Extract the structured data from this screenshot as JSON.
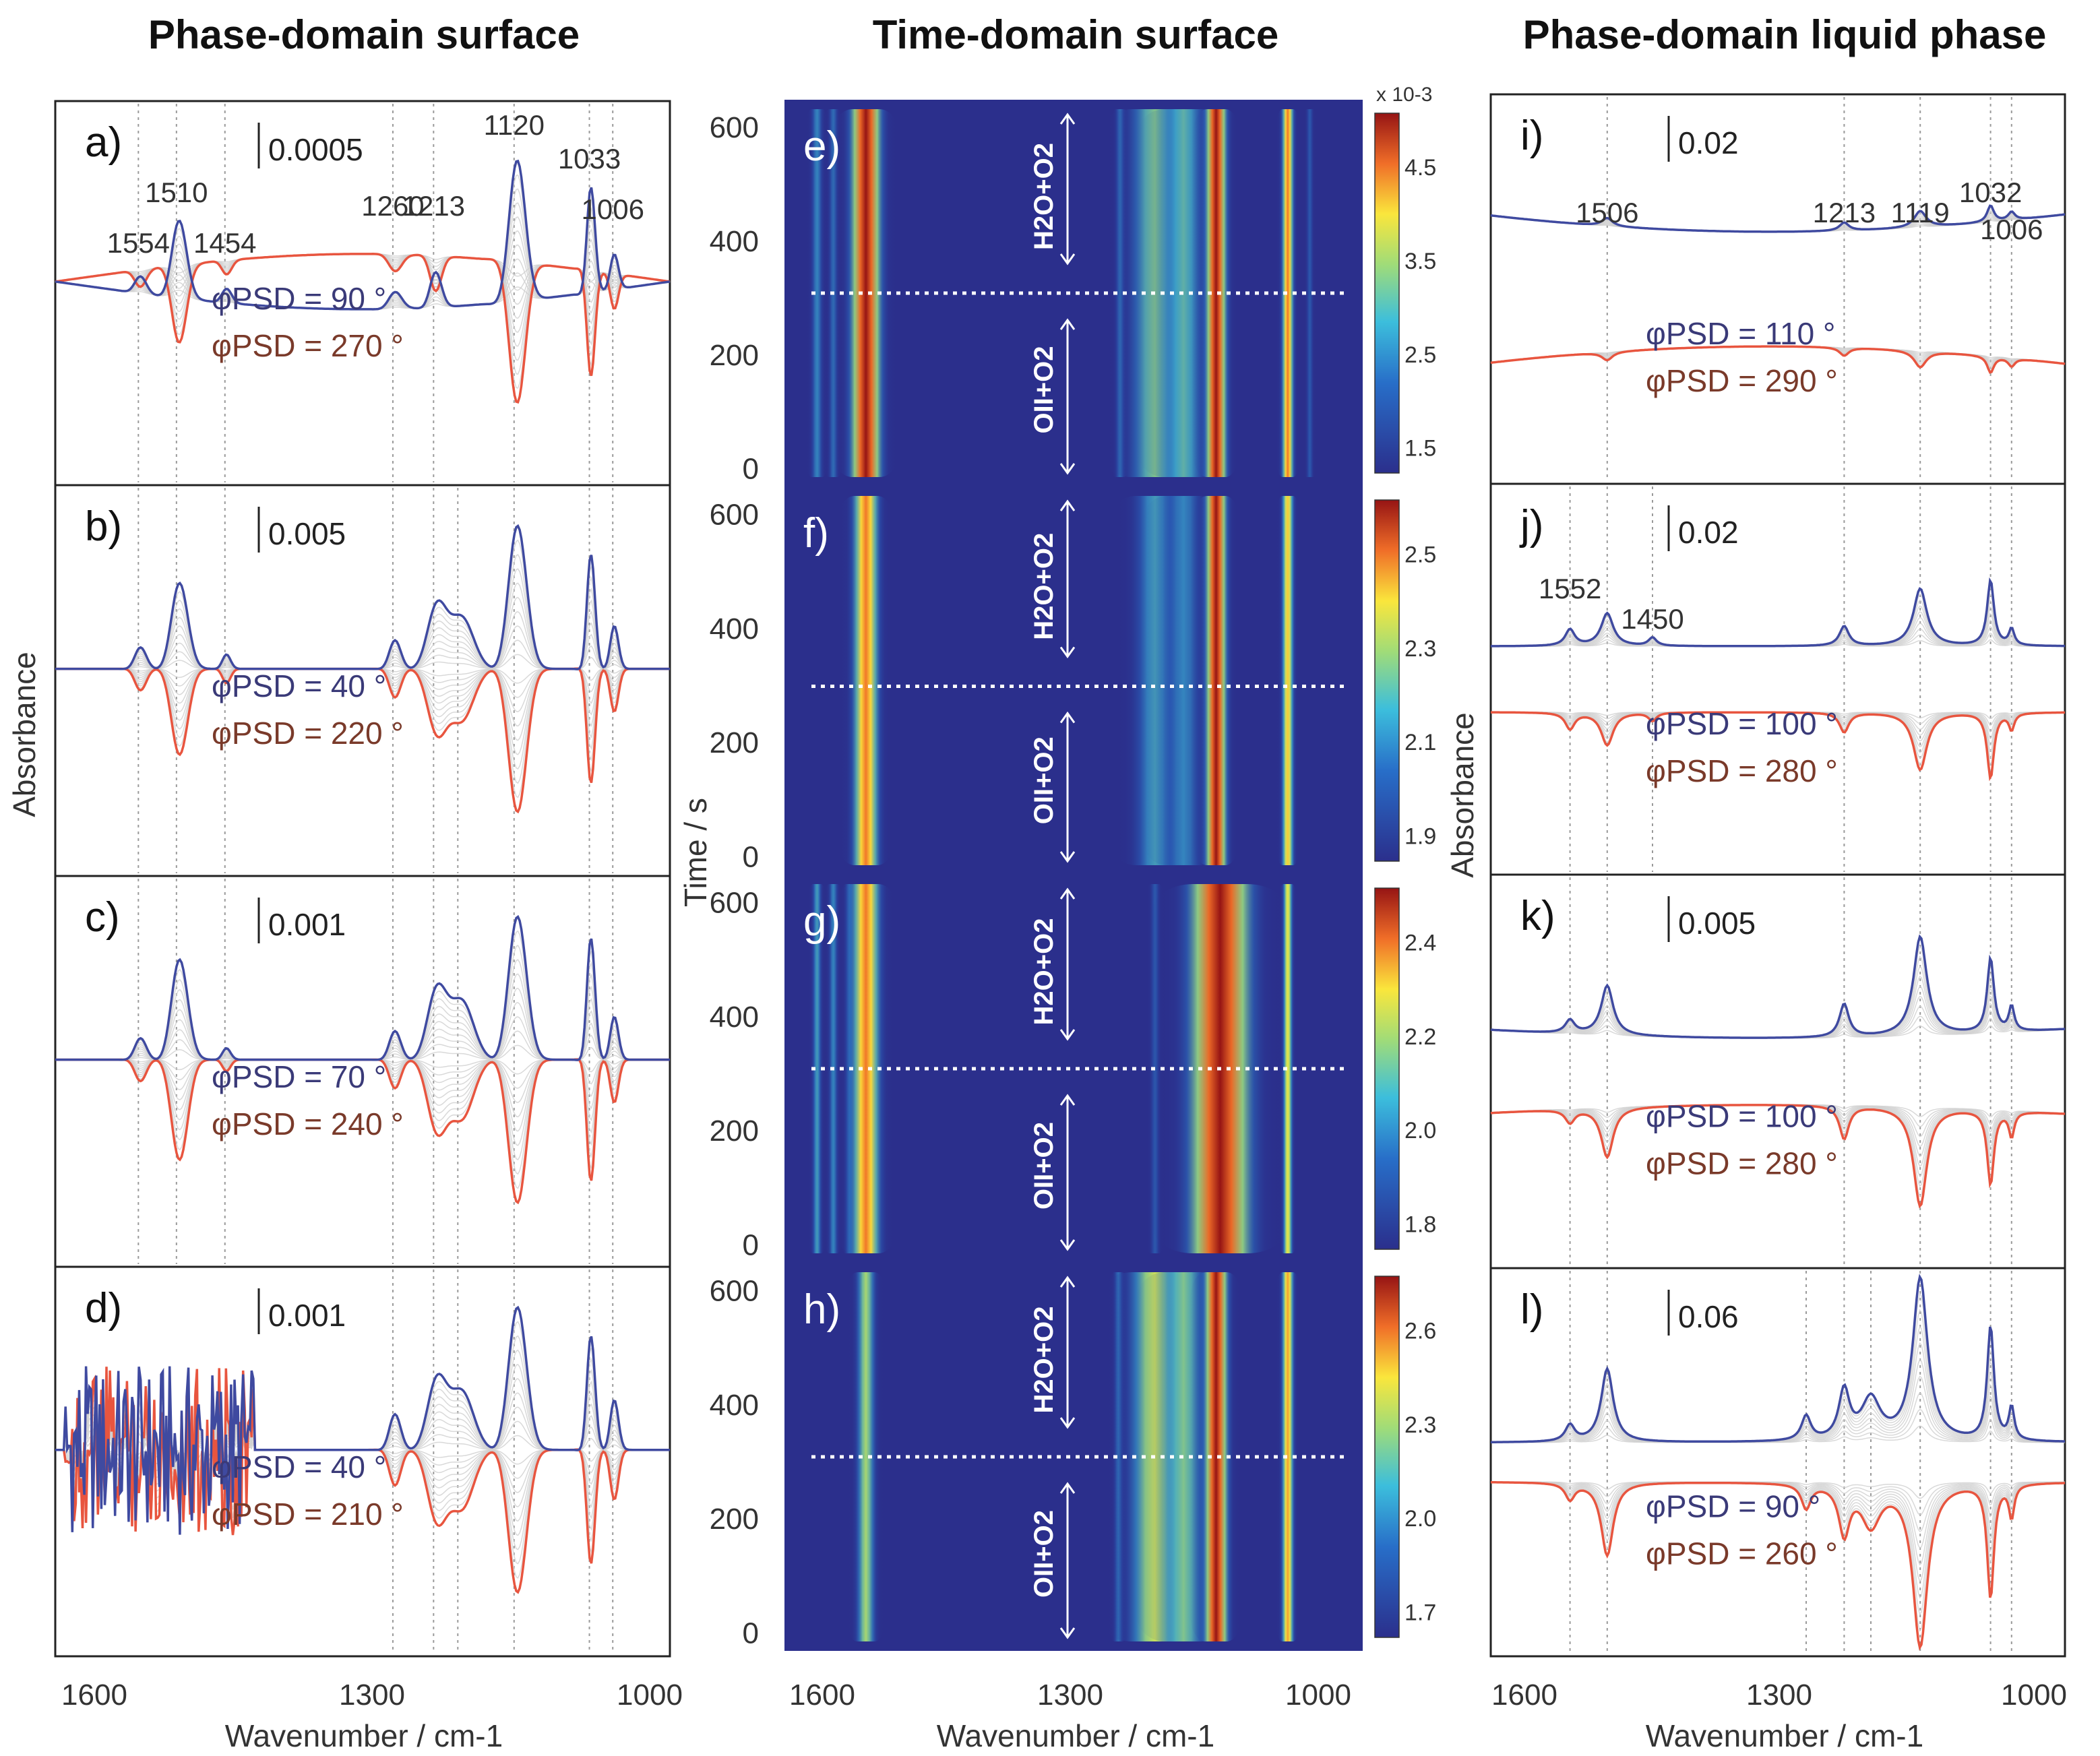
{
  "colors": {
    "blue_trace": "#3f4aa0",
    "red_trace": "#e8553f",
    "grey_trace": "#cfcfcf",
    "heat_background": "#2b2f8c"
  },
  "chart_data": [
    {
      "id": "a",
      "type": "line",
      "group": "phase-domain-surface",
      "column_title": "Phase-domain surface",
      "panel_label": "a)",
      "scale_label": "0.0005",
      "phi_labels": [
        "φPSD = 90 °",
        "φPSD = 270 °"
      ],
      "phi_values": [
        90,
        270
      ],
      "peak_labels": [
        "1554",
        "1510",
        "1454",
        "1260",
        "1213",
        "1120",
        "1033",
        "1006"
      ],
      "peaks": [
        {
          "x": 1554,
          "w": 7,
          "a": 0.12
        },
        {
          "x": 1510,
          "w": 9,
          "a": 0.55
        },
        {
          "x": 1454,
          "w": 6,
          "a": 0.1
        },
        {
          "x": 1260,
          "w": 8,
          "a": 0.12
        },
        {
          "x": 1213,
          "w": 7,
          "a": 0.25
        },
        {
          "x": 1120,
          "w": 10,
          "a": 1.0
        },
        {
          "x": 1033,
          "w": 5,
          "a": 0.75
        },
        {
          "x": 1006,
          "w": 5,
          "a": 0.25
        }
      ],
      "baseline_shift": 0.18,
      "xlabel": "Wavenumber / cm-1",
      "xlim": [
        1650,
        940
      ],
      "xticks": [
        "1600",
        "1300",
        "1000"
      ],
      "ylabel": "Absorbance"
    },
    {
      "id": "b",
      "type": "line",
      "group": "phase-domain-surface",
      "panel_label": "b)",
      "scale_label": "0.005",
      "phi_labels": [
        "φPSD = 40 °",
        "φPSD = 220 °"
      ],
      "phi_values": [
        40,
        220
      ],
      "peaks": [
        {
          "x": 1554,
          "w": 7,
          "a": 0.15
        },
        {
          "x": 1510,
          "w": 10,
          "a": 0.6
        },
        {
          "x": 1454,
          "w": 5,
          "a": 0.1
        },
        {
          "x": 1260,
          "w": 7,
          "a": 0.2
        },
        {
          "x": 1213,
          "w": 12,
          "a": 0.45
        },
        {
          "x": 1185,
          "w": 14,
          "a": 0.35
        },
        {
          "x": 1120,
          "w": 11,
          "a": 1.0
        },
        {
          "x": 1033,
          "w": 5,
          "a": 0.8
        },
        {
          "x": 1006,
          "w": 5,
          "a": 0.3
        }
      ],
      "baseline_shift": 0.0,
      "xlim": [
        1650,
        940
      ]
    },
    {
      "id": "c",
      "type": "line",
      "group": "phase-domain-surface",
      "panel_label": "c)",
      "scale_label": "0.001",
      "phi_labels": [
        "φPSD = 70 °",
        "φPSD = 240 °"
      ],
      "phi_values": [
        70,
        240
      ],
      "peaks": [
        {
          "x": 1554,
          "w": 7,
          "a": 0.15
        },
        {
          "x": 1510,
          "w": 10,
          "a": 0.7
        },
        {
          "x": 1454,
          "w": 5,
          "a": 0.08
        },
        {
          "x": 1260,
          "w": 7,
          "a": 0.2
        },
        {
          "x": 1213,
          "w": 12,
          "a": 0.5
        },
        {
          "x": 1185,
          "w": 14,
          "a": 0.4
        },
        {
          "x": 1120,
          "w": 11,
          "a": 1.0
        },
        {
          "x": 1033,
          "w": 5,
          "a": 0.85
        },
        {
          "x": 1006,
          "w": 5,
          "a": 0.3
        }
      ],
      "baseline_shift": 0.0,
      "xlim": [
        1650,
        940
      ]
    },
    {
      "id": "d",
      "type": "line",
      "group": "phase-domain-surface",
      "panel_label": "d)",
      "scale_label": "0.001",
      "phi_labels": [
        "φPSD = 40 °",
        "φPSD = 210 °"
      ],
      "phi_values": [
        40,
        210
      ],
      "noise_region": [
        1640,
        1420
      ],
      "peaks": [
        {
          "x": 1260,
          "w": 7,
          "a": 0.25
        },
        {
          "x": 1213,
          "w": 12,
          "a": 0.5
        },
        {
          "x": 1185,
          "w": 14,
          "a": 0.4
        },
        {
          "x": 1120,
          "w": 11,
          "a": 1.0
        },
        {
          "x": 1033,
          "w": 5,
          "a": 0.8
        },
        {
          "x": 1006,
          "w": 5,
          "a": 0.35
        }
      ],
      "baseline_shift": 0.0,
      "xlim": [
        1650,
        940
      ]
    },
    {
      "id": "e",
      "type": "heatmap",
      "group": "time-domain-surface",
      "column_title": "Time-domain surface",
      "panel_label": "e)",
      "colorbar_exponent": "x 10-3",
      "colorbar_ticks": [
        "4.5",
        "3.5",
        "2.5",
        "1.5"
      ],
      "gas_upper": "H2O+O2",
      "gas_lower": "OII+O2",
      "switch_time": 310,
      "ylim": [
        -30,
        650
      ],
      "yticks": [
        "600",
        "400",
        "200",
        "0"
      ],
      "bands": [
        {
          "x": 1610,
          "w": 5,
          "a": 0.4
        },
        {
          "x": 1590,
          "w": 4,
          "a": 0.35
        },
        {
          "x": 1550,
          "w": 13,
          "a": 1.0
        },
        {
          "x": 1238,
          "w": 4,
          "a": 0.35
        },
        {
          "x": 1195,
          "w": 22,
          "a": 0.55
        },
        {
          "x": 1160,
          "w": 18,
          "a": 0.5
        },
        {
          "x": 1120,
          "w": 9,
          "a": 1.0
        },
        {
          "x": 1032,
          "w": 5,
          "a": 0.85
        },
        {
          "x": 1005,
          "w": 3,
          "a": 0.3
        }
      ]
    },
    {
      "id": "f",
      "type": "heatmap",
      "group": "time-domain-surface",
      "panel_label": "f)",
      "colorbar_ticks": [
        "2.5",
        "2.3",
        "2.1",
        "1.9"
      ],
      "gas_upper": "H2O+O2",
      "gas_lower": "OII+O2",
      "switch_time": 300,
      "ylim": [
        -30,
        650
      ],
      "yticks": [
        "600",
        "400",
        "200",
        "0"
      ],
      "ylabel": "Time / s",
      "bands": [
        {
          "x": 1550,
          "w": 11,
          "a": 0.85
        },
        {
          "x": 1195,
          "w": 18,
          "a": 0.45
        },
        {
          "x": 1160,
          "w": 16,
          "a": 0.4
        },
        {
          "x": 1120,
          "w": 9,
          "a": 1.0
        },
        {
          "x": 1032,
          "w": 5,
          "a": 0.75
        }
      ]
    },
    {
      "id": "g",
      "type": "heatmap",
      "group": "time-domain-surface",
      "panel_label": "g)",
      "colorbar_ticks": [
        "2.4",
        "2.2",
        "2.0",
        "1.8"
      ],
      "gas_upper": "H2O+O2",
      "gas_lower": "OII+O2",
      "switch_time": 310,
      "ylim": [
        -30,
        650
      ],
      "yticks": [
        "600",
        "400",
        "200",
        "0"
      ],
      "bands": [
        {
          "x": 1610,
          "w": 4,
          "a": 0.45
        },
        {
          "x": 1590,
          "w": 4,
          "a": 0.4
        },
        {
          "x": 1570,
          "w": 4,
          "a": 0.35
        },
        {
          "x": 1550,
          "w": 12,
          "a": 0.85
        },
        {
          "x": 1195,
          "w": 4,
          "a": 0.3
        },
        {
          "x": 1115,
          "w": 26,
          "a": 1.0
        },
        {
          "x": 1032,
          "w": 4,
          "a": 0.7
        }
      ]
    },
    {
      "id": "h",
      "type": "heatmap",
      "group": "time-domain-surface",
      "panel_label": "h)",
      "colorbar_ticks": [
        "2.6",
        "2.3",
        "2.0",
        "1.7"
      ],
      "gas_upper": "H2O+O2",
      "gas_lower": "OII+O2",
      "switch_time": 310,
      "ylim": [
        -30,
        650
      ],
      "yticks": [
        "600",
        "400",
        "200",
        "0"
      ],
      "xlabel": "Wavenumber / cm-1",
      "xlim": [
        1650,
        940
      ],
      "xticks": [
        "1600",
        "1300",
        "1000"
      ],
      "bands": [
        {
          "x": 1550,
          "w": 8,
          "a": 0.6
        },
        {
          "x": 1240,
          "w": 4,
          "a": 0.35
        },
        {
          "x": 1195,
          "w": 22,
          "a": 0.65
        },
        {
          "x": 1160,
          "w": 18,
          "a": 0.55
        },
        {
          "x": 1120,
          "w": 10,
          "a": 1.0
        },
        {
          "x": 1032,
          "w": 5,
          "a": 0.8
        }
      ]
    },
    {
      "id": "i",
      "type": "line",
      "group": "phase-domain-liquid",
      "column_title": "Phase-domain liquid phase",
      "panel_label": "i)",
      "scale_label": "0.02",
      "phi_labels": [
        "φPSD = 110 °",
        "φPSD = 290 °"
      ],
      "phi_values": [
        110,
        290
      ],
      "peak_labels": [
        "1506",
        "1213",
        "1119",
        "1032",
        "1006"
      ],
      "peaks": [
        {
          "x": 1506,
          "w": 8,
          "a": 0.05
        },
        {
          "x": 1213,
          "w": 7,
          "a": 0.05
        },
        {
          "x": 1119,
          "w": 9,
          "a": 0.1
        },
        {
          "x": 1032,
          "w": 5,
          "a": 0.1
        },
        {
          "x": 1006,
          "w": 5,
          "a": 0.05
        }
      ],
      "offset": 0.35,
      "bow": 0.1,
      "xlim": [
        1650,
        940
      ],
      "ylabel": "Absorbance"
    },
    {
      "id": "j",
      "type": "line",
      "group": "phase-domain-liquid",
      "panel_label": "j)",
      "scale_label": "0.02",
      "phi_labels": [
        "φPSD = 100 °",
        "φPSD = 280 °"
      ],
      "phi_values": [
        100,
        280
      ],
      "peak_labels": [
        "1552",
        "1450"
      ],
      "peaks": [
        {
          "x": 1552,
          "w": 7,
          "a": 0.1
        },
        {
          "x": 1506,
          "w": 9,
          "a": 0.2
        },
        {
          "x": 1450,
          "w": 6,
          "a": 0.05
        },
        {
          "x": 1213,
          "w": 7,
          "a": 0.12
        },
        {
          "x": 1119,
          "w": 10,
          "a": 0.35
        },
        {
          "x": 1032,
          "w": 5,
          "a": 0.4
        },
        {
          "x": 1006,
          "w": 4,
          "a": 0.1
        }
      ],
      "offset": 0.2,
      "bow": 0.0,
      "xlim": [
        1650,
        940
      ]
    },
    {
      "id": "k",
      "type": "line",
      "group": "phase-domain-liquid",
      "panel_label": "k)",
      "scale_label": "0.005",
      "phi_labels": [
        "φPSD = 100 °",
        "φPSD = 280 °"
      ],
      "phi_values": [
        100,
        280
      ],
      "peaks": [
        {
          "x": 1552,
          "w": 7,
          "a": 0.08
        },
        {
          "x": 1506,
          "w": 9,
          "a": 0.3
        },
        {
          "x": 1213,
          "w": 7,
          "a": 0.2
        },
        {
          "x": 1119,
          "w": 10,
          "a": 0.6
        },
        {
          "x": 1032,
          "w": 5,
          "a": 0.45
        },
        {
          "x": 1006,
          "w": 4,
          "a": 0.15
        }
      ],
      "offset": 0.2,
      "bow": 0.05,
      "xlim": [
        1650,
        940
      ]
    },
    {
      "id": "l",
      "type": "line",
      "group": "phase-domain-liquid",
      "panel_label": "l)",
      "scale_label": "0.06",
      "phi_labels": [
        "φPSD = 90 °",
        "φPSD = 260 °"
      ],
      "phi_values": [
        90,
        260
      ],
      "xlabel": "Wavenumber / cm-1",
      "xlim": [
        1650,
        940
      ],
      "xticks": [
        "1600",
        "1300",
        "1000"
      ],
      "peaks": [
        {
          "x": 1552,
          "w": 7,
          "a": 0.1
        },
        {
          "x": 1506,
          "w": 9,
          "a": 0.45
        },
        {
          "x": 1260,
          "w": 7,
          "a": 0.15
        },
        {
          "x": 1213,
          "w": 8,
          "a": 0.3
        },
        {
          "x": 1180,
          "w": 14,
          "a": 0.25
        },
        {
          "x": 1119,
          "w": 11,
          "a": 1.0
        },
        {
          "x": 1032,
          "w": 5,
          "a": 0.7
        },
        {
          "x": 1006,
          "w": 4,
          "a": 0.2
        }
      ],
      "offset": 0.12,
      "bow": 0.0
    }
  ]
}
